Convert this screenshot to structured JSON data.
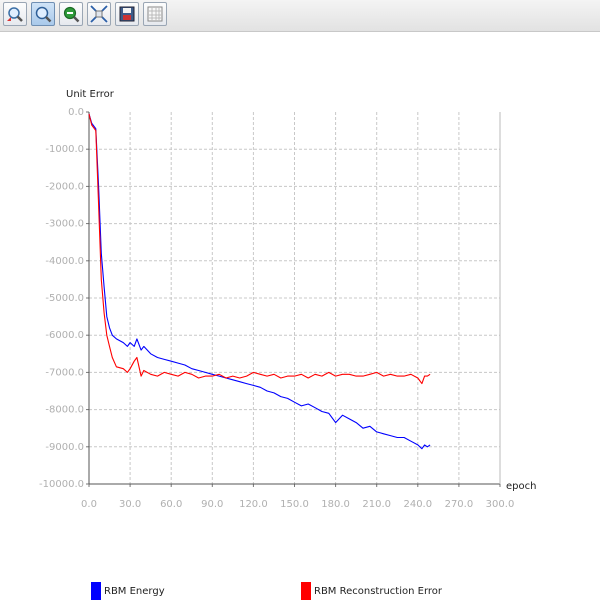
{
  "toolbar": {
    "buttons": [
      {
        "icon": "zoom-in-select-icon"
      },
      {
        "icon": "zoom-icon",
        "active": true
      },
      {
        "icon": "zoom-out-icon"
      },
      {
        "icon": "fit-view-icon"
      },
      {
        "icon": "save-icon"
      },
      {
        "icon": "grid-icon"
      }
    ]
  },
  "legend": {
    "items": [
      {
        "label": "RBM Energy",
        "color": "#0000ff"
      },
      {
        "label": "RBM Reconstruction Error",
        "color": "#ff0000"
      }
    ]
  },
  "chart_data": {
    "type": "line",
    "title": "",
    "xlabel": "epoch",
    "ylabel": "Unit Error",
    "xlim": [
      0,
      300
    ],
    "ylim": [
      -10000,
      0
    ],
    "x_ticks": [
      "0.0",
      "30.0",
      "60.0",
      "90.0",
      "120.0",
      "150.0",
      "180.0",
      "210.0",
      "240.0",
      "270.0",
      "300.0"
    ],
    "y_ticks": [
      "0.0",
      "-1000.0",
      "-2000.0",
      "-3000.0",
      "-4000.0",
      "-5000.0",
      "-6000.0",
      "-7000.0",
      "-8000.0",
      "-9000.0",
      "-10000.0"
    ],
    "grid": true,
    "legend_position": "bottom",
    "series": [
      {
        "name": "RBM Energy",
        "color": "#0000ff",
        "x": [
          0,
          2,
          5,
          7,
          9,
          11,
          13,
          15,
          17,
          20,
          25,
          28,
          30,
          33,
          35,
          38,
          40,
          45,
          50,
          55,
          60,
          65,
          70,
          75,
          80,
          85,
          90,
          95,
          100,
          105,
          110,
          115,
          120,
          125,
          130,
          135,
          140,
          145,
          150,
          155,
          160,
          165,
          170,
          175,
          180,
          185,
          190,
          195,
          200,
          205,
          210,
          215,
          220,
          225,
          230,
          235,
          240,
          243,
          245,
          247,
          249
        ],
        "y": [
          -50,
          -300,
          -450,
          -2000,
          -3800,
          -4700,
          -5500,
          -5800,
          -6000,
          -6100,
          -6200,
          -6300,
          -6200,
          -6300,
          -6100,
          -6400,
          -6300,
          -6500,
          -6600,
          -6650,
          -6700,
          -6750,
          -6800,
          -6900,
          -6950,
          -7000,
          -7050,
          -7100,
          -7150,
          -7200,
          -7250,
          -7300,
          -7350,
          -7400,
          -7500,
          -7550,
          -7650,
          -7700,
          -7800,
          -7900,
          -7850,
          -7950,
          -8050,
          -8100,
          -8350,
          -8150,
          -8250,
          -8350,
          -8500,
          -8450,
          -8600,
          -8650,
          -8700,
          -8750,
          -8750,
          -8850,
          -8950,
          -9050,
          -8950,
          -9000,
          -8950
        ]
      },
      {
        "name": "RBM Reconstruction Error",
        "color": "#ff0000",
        "x": [
          0,
          2,
          5,
          7,
          9,
          11,
          13,
          15,
          17,
          20,
          25,
          28,
          30,
          33,
          35,
          38,
          40,
          45,
          50,
          55,
          60,
          65,
          70,
          75,
          80,
          85,
          90,
          95,
          100,
          105,
          110,
          115,
          120,
          125,
          130,
          135,
          140,
          145,
          150,
          155,
          160,
          165,
          170,
          175,
          180,
          185,
          190,
          195,
          200,
          205,
          210,
          215,
          220,
          225,
          230,
          235,
          240,
          243,
          245,
          247,
          249
        ],
        "y": [
          -50,
          -350,
          -500,
          -2500,
          -4500,
          -5400,
          -6000,
          -6300,
          -6600,
          -6850,
          -6900,
          -7000,
          -6900,
          -6700,
          -6600,
          -7100,
          -6950,
          -7050,
          -7100,
          -7000,
          -7050,
          -7100,
          -7000,
          -7050,
          -7150,
          -7100,
          -7100,
          -7050,
          -7150,
          -7100,
          -7150,
          -7100,
          -7000,
          -7050,
          -7100,
          -7050,
          -7150,
          -7100,
          -7100,
          -7050,
          -7150,
          -7050,
          -7100,
          -7000,
          -7100,
          -7050,
          -7050,
          -7100,
          -7100,
          -7050,
          -7000,
          -7100,
          -7050,
          -7100,
          -7100,
          -7050,
          -7150,
          -7300,
          -7100,
          -7100,
          -7050
        ]
      }
    ]
  }
}
